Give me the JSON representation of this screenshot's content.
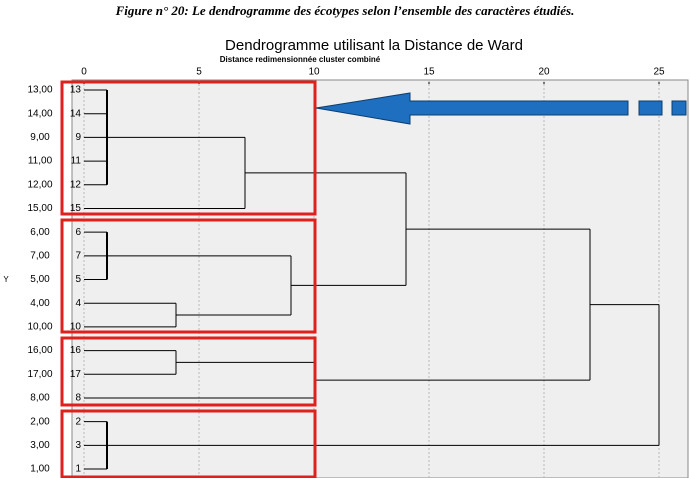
{
  "figure_caption": "Figure n° 20: Le dendrogramme des écotypes selon l’ensemble des caractères étudiés.",
  "chart_data": {
    "type": "dendrogram",
    "title": "Dendrogramme utilisant la Distance de Ward",
    "subtitle": "Distance redimensionnée cluster combiné",
    "y_label": "Y",
    "leaves": [
      {
        "label": "13,00",
        "id": "13"
      },
      {
        "label": "14,00",
        "id": "14"
      },
      {
        "label": "9,00",
        "id": "9"
      },
      {
        "label": "11,00",
        "id": "11"
      },
      {
        "label": "12,00",
        "id": "12"
      },
      {
        "label": "15,00",
        "id": "15"
      },
      {
        "label": "6,00",
        "id": "6"
      },
      {
        "label": "7,00",
        "id": "7"
      },
      {
        "label": "5,00",
        "id": "5"
      },
      {
        "label": "4,00",
        "id": "4"
      },
      {
        "label": "10,00",
        "id": "10"
      },
      {
        "label": "16,00",
        "id": "16"
      },
      {
        "label": "17,00",
        "id": "17"
      },
      {
        "label": "8,00",
        "id": "8"
      },
      {
        "label": "2,00",
        "id": "2"
      },
      {
        "label": "3,00",
        "id": "3"
      },
      {
        "label": "1,00",
        "id": "1"
      }
    ],
    "merges": [
      {
        "children": [
          0,
          1,
          2,
          3,
          4
        ],
        "height": 1
      },
      {
        "children": [
          17,
          5
        ],
        "height": 7
      },
      {
        "children": [
          6,
          7,
          8
        ],
        "height": 1
      },
      {
        "children": [
          9,
          10
        ],
        "height": 4
      },
      {
        "children": [
          19,
          20
        ],
        "height": 9
      },
      {
        "children": [
          18,
          21
        ],
        "height": 14
      },
      {
        "children": [
          11,
          12
        ],
        "height": 4
      },
      {
        "children": [
          23,
          13
        ],
        "height": 10
      },
      {
        "children": [
          22,
          24
        ],
        "height": 22
      },
      {
        "children": [
          14,
          15,
          16
        ],
        "height": 1
      },
      {
        "children": [
          25,
          26
        ],
        "height": 25
      }
    ],
    "xlim": [
      0,
      25
    ],
    "xticks": [
      0,
      5,
      10,
      15,
      20,
      25
    ],
    "grid": true,
    "color": "#000000"
  }
}
